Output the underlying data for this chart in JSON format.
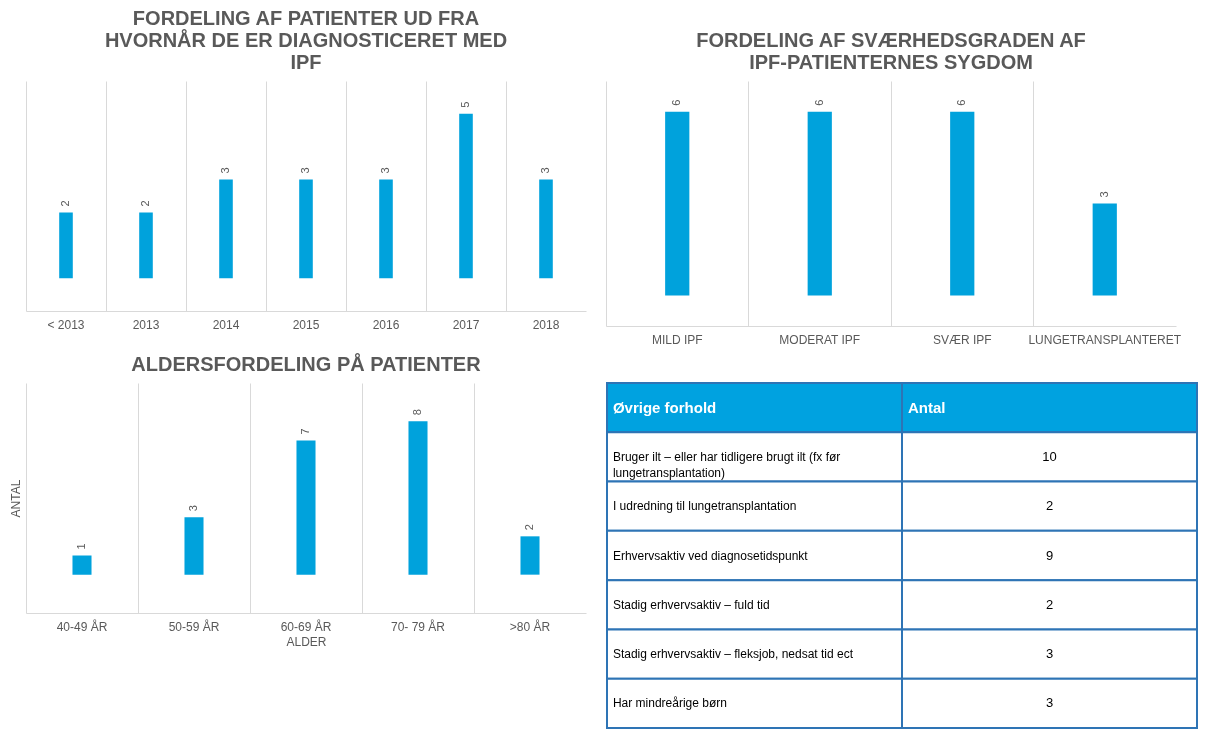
{
  "chart_data": [
    {
      "type": "bar",
      "title": "FORDELING AF PATIENTER UD FRA HVORNÅR DE ER DIAGNOSTICERET MED IPF",
      "categories": [
        "< 2013",
        "2013",
        "2014",
        "2015",
        "2016",
        "2017",
        "2018"
      ],
      "values": [
        2,
        2,
        3,
        3,
        3,
        5,
        3
      ],
      "color": "#00a2dc",
      "data_labels": true,
      "grid": "x",
      "tick_labels": "x"
    },
    {
      "type": "bar",
      "title": "FORDELING AF SVÆRHEDSGRADEN AF IPF-PATIENTERNES  SYGDOM",
      "categories": [
        "MILD IPF",
        "MODERAT IPF",
        "SVÆR IPF",
        "LUNGETRANSPLANTERET"
      ],
      "values": [
        6,
        6,
        6,
        3
      ],
      "color": "#00a2dc",
      "data_labels": true,
      "grid": "x",
      "tick_labels": "x"
    },
    {
      "type": "bar",
      "title": "ALDERSFORDELING PÅ PATIENTER",
      "xlabel": "ALDER",
      "ylabel": "ANTAL",
      "categories": [
        "40-49 ÅR",
        "50-59 ÅR",
        "60-69 ÅR",
        "70- 79 ÅR",
        ">80 ÅR"
      ],
      "values": [
        1,
        3,
        7,
        8,
        2
      ],
      "color": "#00a2dc",
      "data_labels": true,
      "grid": "x",
      "tick_labels": "x"
    },
    {
      "type": "other",
      "xlabel": "Øvrige forhold",
      "ylabel": "Antal",
      "categories": [
        "Bruger ilt – eller har tidligere brugt ilt (fx før lungetransplantation)",
        "I udredning til lungetransplantation",
        "Erhvervsaktiv ved diagnosetidspunkt",
        "Stadig erhvervsaktiv – fuld tid",
        "Stadig erhvervsaktiv – fleksjob, nedsat tid ect",
        "Har mindreårige børn"
      ],
      "values": [
        10,
        2,
        9,
        2,
        3,
        3
      ],
      "data_labels": true
    }
  ]
}
